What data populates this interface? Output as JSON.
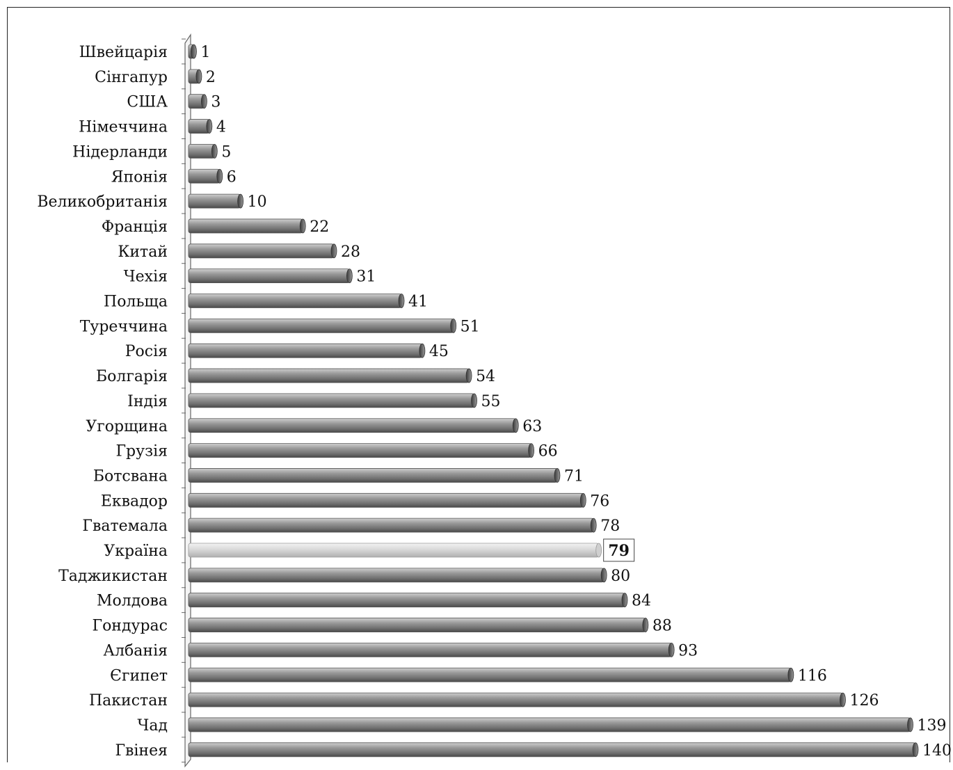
{
  "chart_data": {
    "type": "bar",
    "orientation": "horizontal",
    "categories": [
      "Швейцарія",
      "Сінгапур",
      "США",
      "Німеччина",
      "Нідерланди",
      "Японія",
      "Великобританія",
      "Франція",
      "Китай",
      "Чехія",
      "Польща",
      "Туреччина",
      "Росія",
      "Болгарія",
      "Індія",
      "Угорщина",
      "Грузія",
      "Ботсвана",
      "Еквадор",
      "Гватемала",
      "Україна",
      "Таджикистан",
      "Молдова",
      "Гондурас",
      "Албанія",
      "Єгипет",
      "Пакистан",
      "Чад",
      "Гвінея"
    ],
    "values": [
      1,
      2,
      3,
      4,
      5,
      6,
      10,
      22,
      28,
      31,
      41,
      51,
      45,
      54,
      55,
      63,
      66,
      71,
      76,
      78,
      79,
      80,
      84,
      88,
      93,
      116,
      126,
      139,
      140
    ],
    "highlight": "Україна",
    "title": "",
    "xlabel": "",
    "ylabel": "",
    "xlim": [
      0,
      140
    ],
    "grid": false,
    "legend": "none",
    "colors": {
      "bar": "#8a8a8a",
      "bar_highlight": "#d6d6d6",
      "axis": "#666666",
      "text": "#111111"
    }
  }
}
